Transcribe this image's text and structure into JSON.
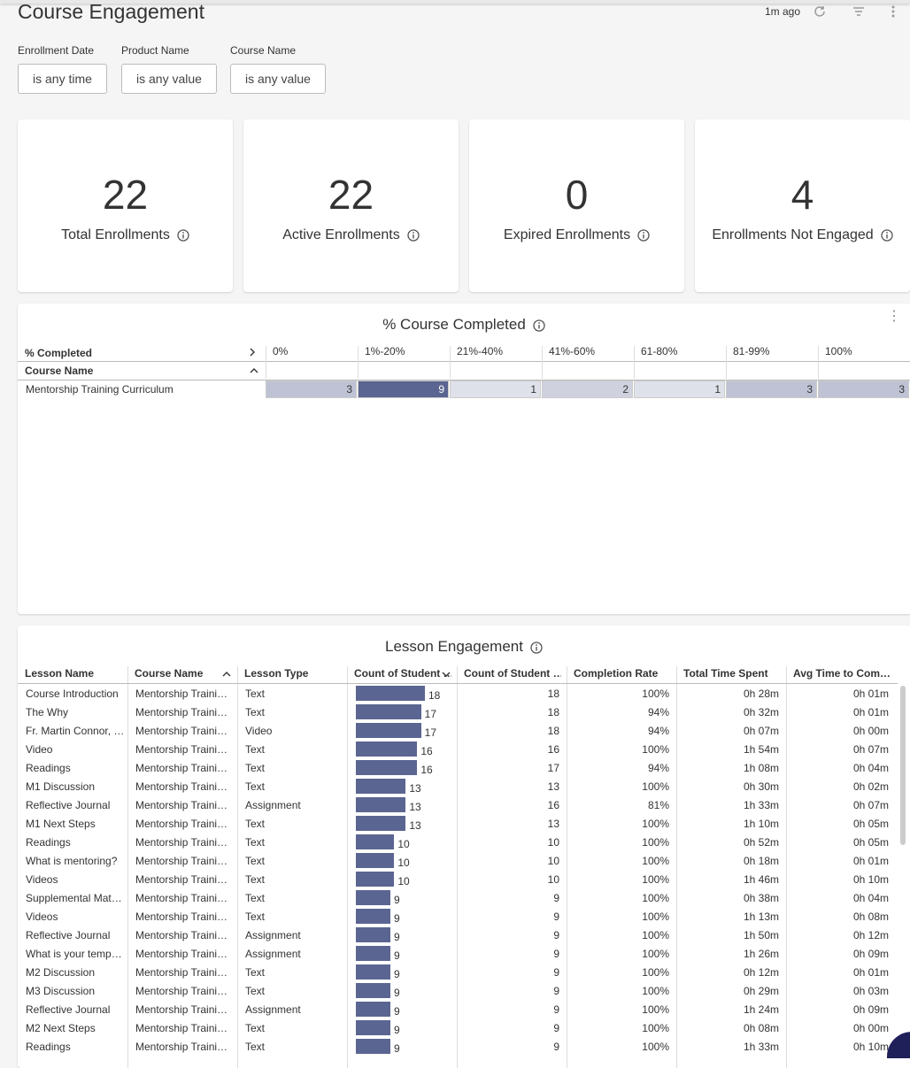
{
  "header": {
    "title": "Course Engagement",
    "updated": "1m ago"
  },
  "filters": [
    {
      "label": "Enrollment Date",
      "value": "is any time"
    },
    {
      "label": "Product Name",
      "value": "is any value"
    },
    {
      "label": "Course Name",
      "value": "is any value"
    }
  ],
  "kpis": [
    {
      "value": 22,
      "label": "Total Enrollments"
    },
    {
      "value": 22,
      "label": "Active Enrollments"
    },
    {
      "value": 0,
      "label": "Expired Enrollments"
    },
    {
      "value": 4,
      "label": "Enrollments Not Engaged"
    }
  ],
  "course_completed": {
    "title": "% Course Completed",
    "pivot_label": "% Completed",
    "row_label": "Course Name",
    "columns": [
      "0%",
      "1%-20%",
      "21%-40%",
      "41%-60%",
      "61-80%",
      "81-99%",
      "100%"
    ],
    "rows": [
      {
        "name": "Mentorship Training Curriculum",
        "values": [
          3,
          9,
          1,
          2,
          1,
          3,
          3
        ]
      }
    ]
  },
  "lesson_engagement": {
    "title": "Lesson Engagement",
    "columns": [
      "Lesson Name",
      "Course Name",
      "Lesson Type",
      "Count of Student …",
      "Count of Student …",
      "Completion Rate",
      "Total Time Spent",
      "Avg Time to Com…"
    ],
    "rows": [
      [
        "Course Introduction",
        "Mentorship Traini…",
        "Text",
        18,
        18,
        "100%",
        "0h 28m",
        "0h 01m"
      ],
      [
        "The Why",
        "Mentorship Traini…",
        "Text",
        17,
        18,
        "94%",
        "0h 32m",
        "0h 01m"
      ],
      [
        "Fr. Martin Connor, …",
        "Mentorship Traini…",
        "Video",
        17,
        18,
        "94%",
        "0h 07m",
        "0h 00m"
      ],
      [
        "Video",
        "Mentorship Traini…",
        "Text",
        16,
        16,
        "100%",
        "1h 54m",
        "0h 07m"
      ],
      [
        "Readings",
        "Mentorship Traini…",
        "Text",
        16,
        17,
        "94%",
        "1h 08m",
        "0h 04m"
      ],
      [
        "M1 Discussion",
        "Mentorship Traini…",
        "Text",
        13,
        13,
        "100%",
        "0h 30m",
        "0h 02m"
      ],
      [
        "Reflective Journal",
        "Mentorship Traini…",
        "Assignment",
        13,
        16,
        "81%",
        "1h 33m",
        "0h 07m"
      ],
      [
        "M1 Next Steps",
        "Mentorship Traini…",
        "Text",
        13,
        13,
        "100%",
        "1h 10m",
        "0h 05m"
      ],
      [
        "Readings",
        "Mentorship Traini…",
        "Text",
        10,
        10,
        "100%",
        "0h 52m",
        "0h 05m"
      ],
      [
        "What is mentoring?",
        "Mentorship Traini…",
        "Text",
        10,
        10,
        "100%",
        "0h 18m",
        "0h 01m"
      ],
      [
        "Videos",
        "Mentorship Traini…",
        "Text",
        10,
        10,
        "100%",
        "1h 46m",
        "0h 10m"
      ],
      [
        "Supplemental Mat…",
        "Mentorship Traini…",
        "Text",
        9,
        9,
        "100%",
        "0h 38m",
        "0h 04m"
      ],
      [
        "Videos",
        "Mentorship Traini…",
        "Text",
        9,
        9,
        "100%",
        "1h 13m",
        "0h 08m"
      ],
      [
        "Reflective Journal",
        "Mentorship Traini…",
        "Assignment",
        9,
        9,
        "100%",
        "1h 50m",
        "0h 12m"
      ],
      [
        "What is your temp…",
        "Mentorship Traini…",
        "Assignment",
        9,
        9,
        "100%",
        "1h 26m",
        "0h 09m"
      ],
      [
        "M2 Discussion",
        "Mentorship Traini…",
        "Text",
        9,
        9,
        "100%",
        "0h 12m",
        "0h 01m"
      ],
      [
        "M3 Discussion",
        "Mentorship Traini…",
        "Text",
        9,
        9,
        "100%",
        "0h 29m",
        "0h 03m"
      ],
      [
        "Reflective Journal",
        "Mentorship Traini…",
        "Assignment",
        9,
        9,
        "100%",
        "1h 24m",
        "0h 09m"
      ],
      [
        "M2 Next Steps",
        "Mentorship Traini…",
        "Text",
        9,
        9,
        "100%",
        "0h 08m",
        "0h 00m"
      ],
      [
        "Readings",
        "Mentorship Traini…",
        "Text",
        9,
        9,
        "100%",
        "1h 33m",
        "0h 10m"
      ]
    ]
  }
}
